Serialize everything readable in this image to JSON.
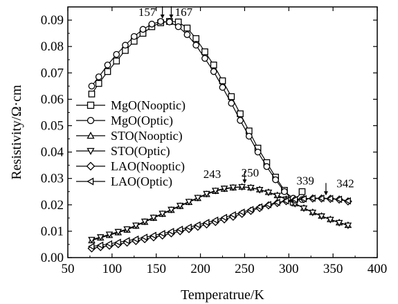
{
  "chart_data": {
    "type": "line",
    "xlabel": "Temperatrue/K",
    "ylabel": "Resistivity/Ω·cm",
    "xlim": [
      50,
      400
    ],
    "ylim": [
      0.0,
      0.095
    ],
    "xticks": [
      50,
      100,
      150,
      200,
      250,
      300,
      350,
      400
    ],
    "yticks": [
      0.0,
      0.01,
      0.02,
      0.03,
      0.04,
      0.05,
      0.06,
      0.07,
      0.08,
      0.09
    ],
    "ytick_labels": [
      "0.00",
      "0.01",
      "0.02",
      "0.03",
      "0.04",
      "0.05",
      "0.06",
      "0.07",
      "0.08",
      "0.09"
    ],
    "grid": false,
    "legend_position": "left",
    "series": [
      {
        "name": "MgO(Nooptic)",
        "marker": "square",
        "x": [
          77,
          85,
          95,
          105,
          115,
          125,
          135,
          145,
          155,
          165,
          175,
          185,
          195,
          205,
          215,
          225,
          235,
          245,
          255,
          265,
          275,
          285,
          295,
          305,
          315
        ],
        "y": [
          0.062,
          0.066,
          0.0705,
          0.0745,
          0.0785,
          0.082,
          0.085,
          0.0875,
          0.089,
          0.0895,
          0.0893,
          0.087,
          0.083,
          0.078,
          0.073,
          0.067,
          0.061,
          0.0545,
          0.048,
          0.0415,
          0.036,
          0.0305,
          0.0255,
          0.021,
          0.025
        ]
      },
      {
        "name": "MgO(Optic)",
        "marker": "circle",
        "x": [
          77,
          85,
          95,
          105,
          115,
          125,
          135,
          145,
          155,
          165,
          175,
          185,
          195,
          205,
          215,
          225,
          235,
          245,
          255,
          265,
          275,
          285,
          295,
          305,
          315
        ],
        "y": [
          0.065,
          0.0685,
          0.073,
          0.077,
          0.0805,
          0.0838,
          0.0865,
          0.0885,
          0.0895,
          0.0893,
          0.0875,
          0.0845,
          0.0805,
          0.0755,
          0.0705,
          0.0645,
          0.0585,
          0.052,
          0.046,
          0.04,
          0.0345,
          0.0295,
          0.025,
          0.0225,
          0.022
        ]
      },
      {
        "name": "STO(Nooptic)",
        "marker": "triangle-up",
        "x": [
          77,
          87,
          97,
          107,
          117,
          127,
          137,
          147,
          157,
          167,
          177,
          187,
          197,
          207,
          217,
          227,
          237,
          247,
          257,
          267,
          277,
          287,
          297,
          307,
          317,
          327,
          337,
          347,
          357,
          367
        ],
        "y": [
          0.0065,
          0.0075,
          0.0085,
          0.0095,
          0.0105,
          0.012,
          0.0135,
          0.015,
          0.0165,
          0.018,
          0.0195,
          0.021,
          0.0225,
          0.024,
          0.0252,
          0.026,
          0.0265,
          0.0268,
          0.0265,
          0.0258,
          0.0248,
          0.0236,
          0.0222,
          0.0205,
          0.0188,
          0.0172,
          0.0158,
          0.0145,
          0.0133,
          0.0123
        ]
      },
      {
        "name": "STO(Optic)",
        "marker": "triangle-down",
        "x": [
          77,
          87,
          97,
          107,
          117,
          127,
          137,
          147,
          157,
          167,
          177,
          187,
          197,
          207,
          217,
          227,
          237,
          247,
          257,
          267,
          277,
          287,
          297,
          307,
          317,
          327,
          337,
          347,
          357,
          367
        ],
        "y": [
          0.0068,
          0.0078,
          0.0088,
          0.0098,
          0.0108,
          0.0122,
          0.0137,
          0.0152,
          0.0167,
          0.0182,
          0.0197,
          0.0212,
          0.0227,
          0.0242,
          0.0254,
          0.0262,
          0.0266,
          0.0268,
          0.0265,
          0.0257,
          0.0247,
          0.0235,
          0.0221,
          0.0204,
          0.0187,
          0.0171,
          0.0157,
          0.0144,
          0.0132,
          0.0122
        ]
      },
      {
        "name": "LAO(Nooptic)",
        "marker": "diamond",
        "x": [
          77,
          87,
          97,
          107,
          117,
          127,
          137,
          147,
          157,
          167,
          177,
          187,
          197,
          207,
          217,
          227,
          237,
          247,
          257,
          267,
          277,
          287,
          297,
          307,
          317,
          327,
          337,
          347,
          357,
          367
        ],
        "y": [
          0.0035,
          0.004,
          0.0045,
          0.0051,
          0.0057,
          0.0063,
          0.007,
          0.0077,
          0.0084,
          0.0092,
          0.01,
          0.0108,
          0.0117,
          0.0126,
          0.0135,
          0.0145,
          0.0155,
          0.0166,
          0.0177,
          0.0188,
          0.0198,
          0.0207,
          0.0214,
          0.0219,
          0.0222,
          0.0224,
          0.0224,
          0.0223,
          0.022,
          0.0213
        ]
      },
      {
        "name": "LAO(Optic)",
        "marker": "triangle-left",
        "x": [
          77,
          87,
          97,
          107,
          117,
          127,
          137,
          147,
          157,
          167,
          177,
          187,
          197,
          207,
          217,
          227,
          237,
          247,
          257,
          267,
          277,
          287,
          297,
          307,
          317,
          327,
          337,
          347,
          357,
          367
        ],
        "y": [
          0.0042,
          0.0047,
          0.0052,
          0.0058,
          0.0064,
          0.007,
          0.0077,
          0.0084,
          0.0091,
          0.0099,
          0.0107,
          0.0115,
          0.0124,
          0.0133,
          0.0142,
          0.0152,
          0.0162,
          0.0172,
          0.0182,
          0.0192,
          0.0201,
          0.0209,
          0.0215,
          0.022,
          0.0223,
          0.0225,
          0.0225,
          0.0224,
          0.0221,
          0.0215
        ]
      }
    ],
    "annotations": [
      {
        "text": "157",
        "x": 157,
        "y": 0.0895
      },
      {
        "text": "167",
        "x": 167,
        "y": 0.0895
      },
      {
        "text": "243",
        "x": 243,
        "y": 0.027
      },
      {
        "text": "250",
        "x": 250,
        "y": 0.027
      },
      {
        "text": "339",
        "x": 339,
        "y": 0.0225
      },
      {
        "text": "342",
        "x": 342,
        "y": 0.0225
      }
    ]
  }
}
